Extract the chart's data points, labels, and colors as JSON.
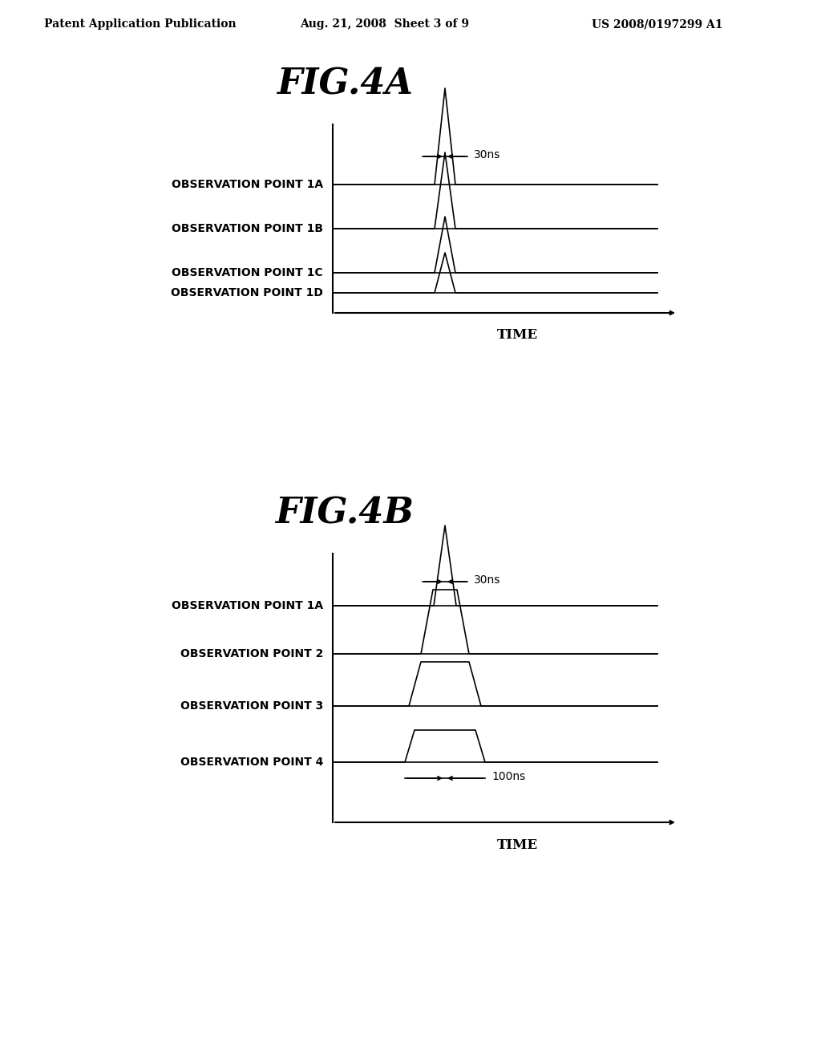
{
  "background_color": "#ffffff",
  "header_left": "Patent Application Publication",
  "header_center": "Aug. 21, 2008  Sheet 3 of 9",
  "header_right": "US 2008/0197299 A1",
  "fig4a_title": "FIG.4A",
  "fig4b_title": "FIG.4B",
  "fig4a_labels": [
    "OBSERVATION POINT 1A",
    "OBSERVATION POINT 1B",
    "OBSERVATION POINT 1C",
    "OBSERVATION POINT 1D"
  ],
  "fig4b_labels": [
    "OBSERVATION POINT 1A",
    "OBSERVATION POINT 2",
    "OBSERVATION POINT 3",
    "OBSERVATION POINT 4"
  ],
  "time_label": "TIME",
  "annotation_30ns": "30ns",
  "annotation_100ns": "100ns"
}
